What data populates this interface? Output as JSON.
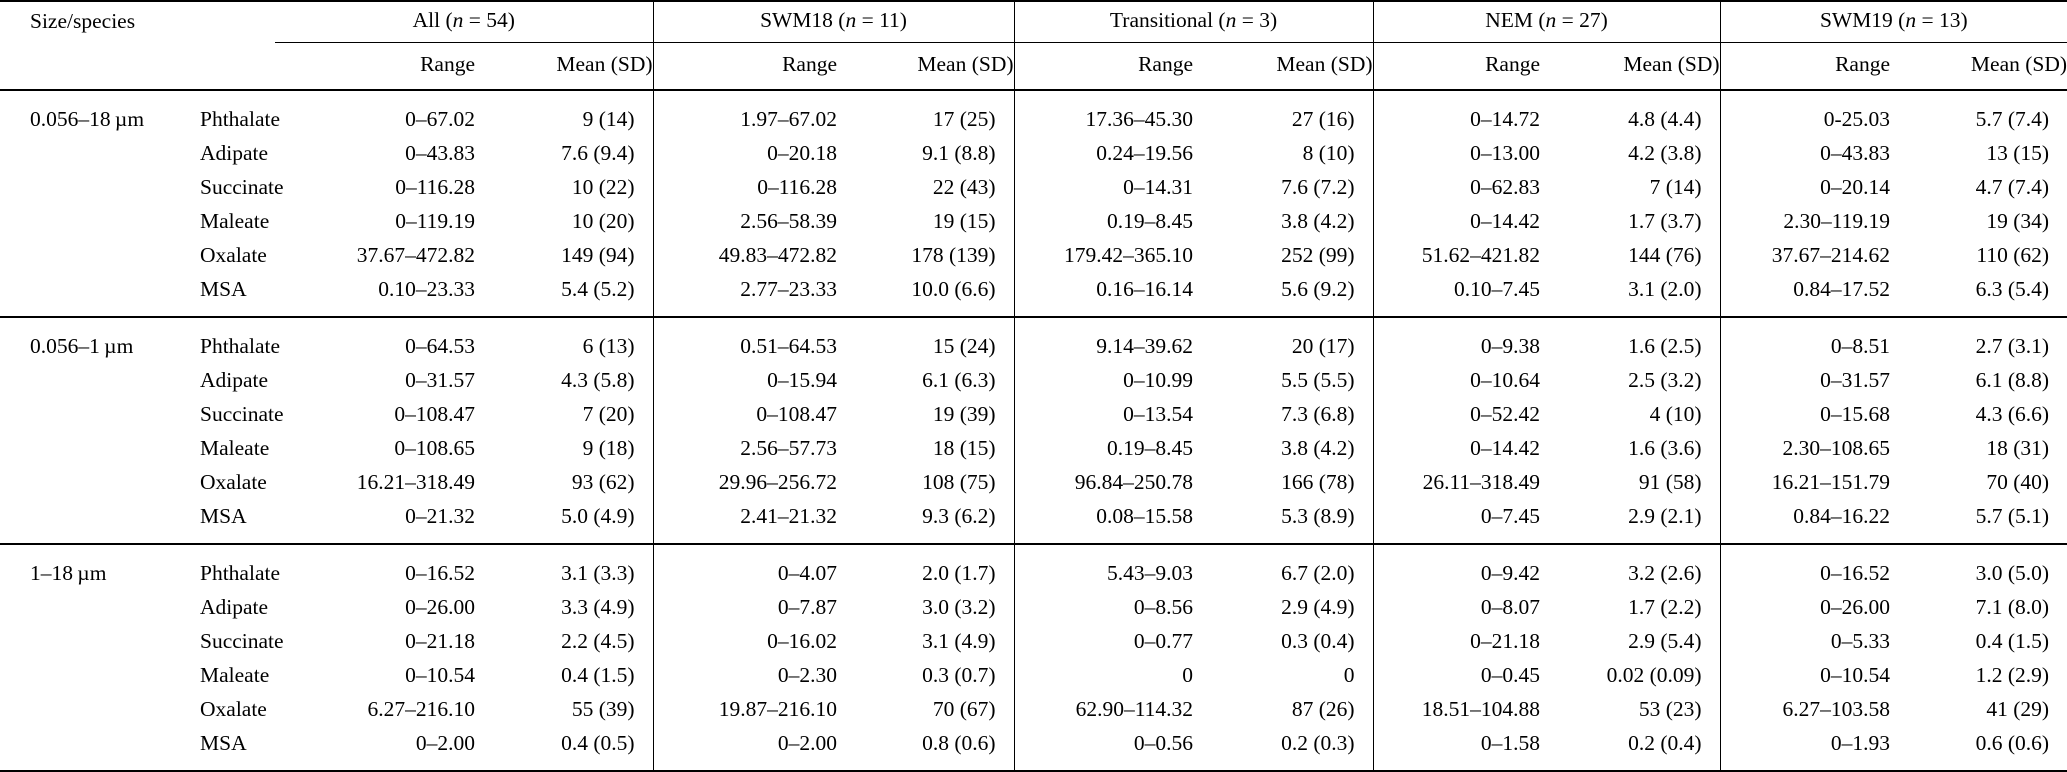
{
  "table": {
    "corner_header": "Size/species",
    "subheaders": {
      "range": "Range",
      "mean": "Mean (SD)"
    },
    "groups": [
      {
        "name": "All",
        "n": "54"
      },
      {
        "name": "SWM18",
        "n": "11"
      },
      {
        "name": "Transitional",
        "n": "3"
      },
      {
        "name": "NEM",
        "n": "27"
      },
      {
        "name": "SWM19",
        "n": "13"
      }
    ],
    "size_groups": [
      {
        "size": "0.056–18 µm",
        "rows": [
          {
            "species": "Phthalate",
            "cells": [
              [
                "0–67.02",
                "9 (14)"
              ],
              [
                "1.97–67.02",
                "17 (25)"
              ],
              [
                "17.36–45.30",
                "27 (16)"
              ],
              [
                "0–14.72",
                "4.8 (4.4)"
              ],
              [
                "0-25.03",
                "5.7 (7.4)"
              ]
            ]
          },
          {
            "species": "Adipate",
            "cells": [
              [
                "0–43.83",
                "7.6 (9.4)"
              ],
              [
                "0–20.18",
                "9.1 (8.8)"
              ],
              [
                "0.24–19.56",
                "8 (10)"
              ],
              [
                "0–13.00",
                "4.2 (3.8)"
              ],
              [
                "0–43.83",
                "13 (15)"
              ]
            ]
          },
          {
            "species": "Succinate",
            "cells": [
              [
                "0–116.28",
                "10 (22)"
              ],
              [
                "0–116.28",
                "22 (43)"
              ],
              [
                "0–14.31",
                "7.6 (7.2)"
              ],
              [
                "0–62.83",
                "7 (14)"
              ],
              [
                "0–20.14",
                "4.7 (7.4)"
              ]
            ]
          },
          {
            "species": "Maleate",
            "cells": [
              [
                "0–119.19",
                "10 (20)"
              ],
              [
                "2.56–58.39",
                "19 (15)"
              ],
              [
                "0.19–8.45",
                "3.8 (4.2)"
              ],
              [
                "0–14.42",
                "1.7 (3.7)"
              ],
              [
                "2.30–119.19",
                "19 (34)"
              ]
            ]
          },
          {
            "species": "Oxalate",
            "cells": [
              [
                "37.67–472.82",
                "149 (94)"
              ],
              [
                "49.83–472.82",
                "178 (139)"
              ],
              [
                "179.42–365.10",
                "252 (99)"
              ],
              [
                "51.62–421.82",
                "144 (76)"
              ],
              [
                "37.67–214.62",
                "110 (62)"
              ]
            ]
          },
          {
            "species": "MSA",
            "cells": [
              [
                "0.10–23.33",
                "5.4 (5.2)"
              ],
              [
                "2.77–23.33",
                "10.0 (6.6)"
              ],
              [
                "0.16–16.14",
                "5.6 (9.2)"
              ],
              [
                "0.10–7.45",
                "3.1 (2.0)"
              ],
              [
                "0.84–17.52",
                "6.3 (5.4)"
              ]
            ]
          }
        ]
      },
      {
        "size": "0.056–1 µm",
        "rows": [
          {
            "species": "Phthalate",
            "cells": [
              [
                "0–64.53",
                "6 (13)"
              ],
              [
                "0.51–64.53",
                "15 (24)"
              ],
              [
                "9.14–39.62",
                "20 (17)"
              ],
              [
                "0–9.38",
                "1.6 (2.5)"
              ],
              [
                "0–8.51",
                "2.7 (3.1)"
              ]
            ]
          },
          {
            "species": "Adipate",
            "cells": [
              [
                "0–31.57",
                "4.3 (5.8)"
              ],
              [
                "0–15.94",
                "6.1 (6.3)"
              ],
              [
                "0–10.99",
                "5.5 (5.5)"
              ],
              [
                "0–10.64",
                "2.5 (3.2)"
              ],
              [
                "0–31.57",
                "6.1 (8.8)"
              ]
            ]
          },
          {
            "species": "Succinate",
            "cells": [
              [
                "0–108.47",
                "7 (20)"
              ],
              [
                "0–108.47",
                "19 (39)"
              ],
              [
                "0–13.54",
                "7.3 (6.8)"
              ],
              [
                "0–52.42",
                "4 (10)"
              ],
              [
                "0–15.68",
                "4.3 (6.6)"
              ]
            ]
          },
          {
            "species": "Maleate",
            "cells": [
              [
                "0–108.65",
                "9 (18)"
              ],
              [
                "2.56–57.73",
                "18 (15)"
              ],
              [
                "0.19–8.45",
                "3.8 (4.2)"
              ],
              [
                "0–14.42",
                "1.6 (3.6)"
              ],
              [
                "2.30–108.65",
                "18 (31)"
              ]
            ]
          },
          {
            "species": "Oxalate",
            "cells": [
              [
                "16.21–318.49",
                "93 (62)"
              ],
              [
                "29.96–256.72",
                "108 (75)"
              ],
              [
                "96.84–250.78",
                "166 (78)"
              ],
              [
                "26.11–318.49",
                "91 (58)"
              ],
              [
                "16.21–151.79",
                "70 (40)"
              ]
            ]
          },
          {
            "species": "MSA",
            "cells": [
              [
                "0–21.32",
                "5.0 (4.9)"
              ],
              [
                "2.41–21.32",
                "9.3 (6.2)"
              ],
              [
                "0.08–15.58",
                "5.3 (8.9)"
              ],
              [
                "0–7.45",
                "2.9 (2.1)"
              ],
              [
                "0.84–16.22",
                "5.7 (5.1)"
              ]
            ]
          }
        ]
      },
      {
        "size": "1–18 µm",
        "rows": [
          {
            "species": "Phthalate",
            "cells": [
              [
                "0–16.52",
                "3.1 (3.3)"
              ],
              [
                "0–4.07",
                "2.0 (1.7)"
              ],
              [
                "5.43–9.03",
                "6.7 (2.0)"
              ],
              [
                "0–9.42",
                "3.2 (2.6)"
              ],
              [
                "0–16.52",
                "3.0 (5.0)"
              ]
            ]
          },
          {
            "species": "Adipate",
            "cells": [
              [
                "0–26.00",
                "3.3 (4.9)"
              ],
              [
                "0–7.87",
                "3.0 (3.2)"
              ],
              [
                "0–8.56",
                "2.9 (4.9)"
              ],
              [
                "0–8.07",
                "1.7 (2.2)"
              ],
              [
                "0–26.00",
                "7.1 (8.0)"
              ]
            ]
          },
          {
            "species": "Succinate",
            "cells": [
              [
                "0–21.18",
                "2.2 (4.5)"
              ],
              [
                "0–16.02",
                "3.1 (4.9)"
              ],
              [
                "0–0.77",
                "0.3 (0.4)"
              ],
              [
                "0–21.18",
                "2.9 (5.4)"
              ],
              [
                "0–5.33",
                "0.4 (1.5)"
              ]
            ]
          },
          {
            "species": "Maleate",
            "cells": [
              [
                "0–10.54",
                "0.4 (1.5)"
              ],
              [
                "0–2.30",
                "0.3 (0.7)"
              ],
              [
                "0",
                "0"
              ],
              [
                "0–0.45",
                "0.02 (0.09)"
              ],
              [
                "0–10.54",
                "1.2 (2.9)"
              ]
            ]
          },
          {
            "species": "Oxalate",
            "cells": [
              [
                "6.27–216.10",
                "55 (39)"
              ],
              [
                "19.87–216.10",
                "70 (67)"
              ],
              [
                "62.90–114.32",
                "87 (26)"
              ],
              [
                "18.51–104.88",
                "53 (23)"
              ],
              [
                "6.27–103.58",
                "41 (29)"
              ]
            ]
          },
          {
            "species": "MSA",
            "cells": [
              [
                "0–2.00",
                "0.4 (0.5)"
              ],
              [
                "0–2.00",
                "0.8 (0.6)"
              ],
              [
                "0–0.56",
                "0.2 (0.3)"
              ],
              [
                "0–1.58",
                "0.2 (0.4)"
              ],
              [
                "0–1.93",
                "0.6 (0.6)"
              ]
            ]
          }
        ]
      }
    ]
  }
}
